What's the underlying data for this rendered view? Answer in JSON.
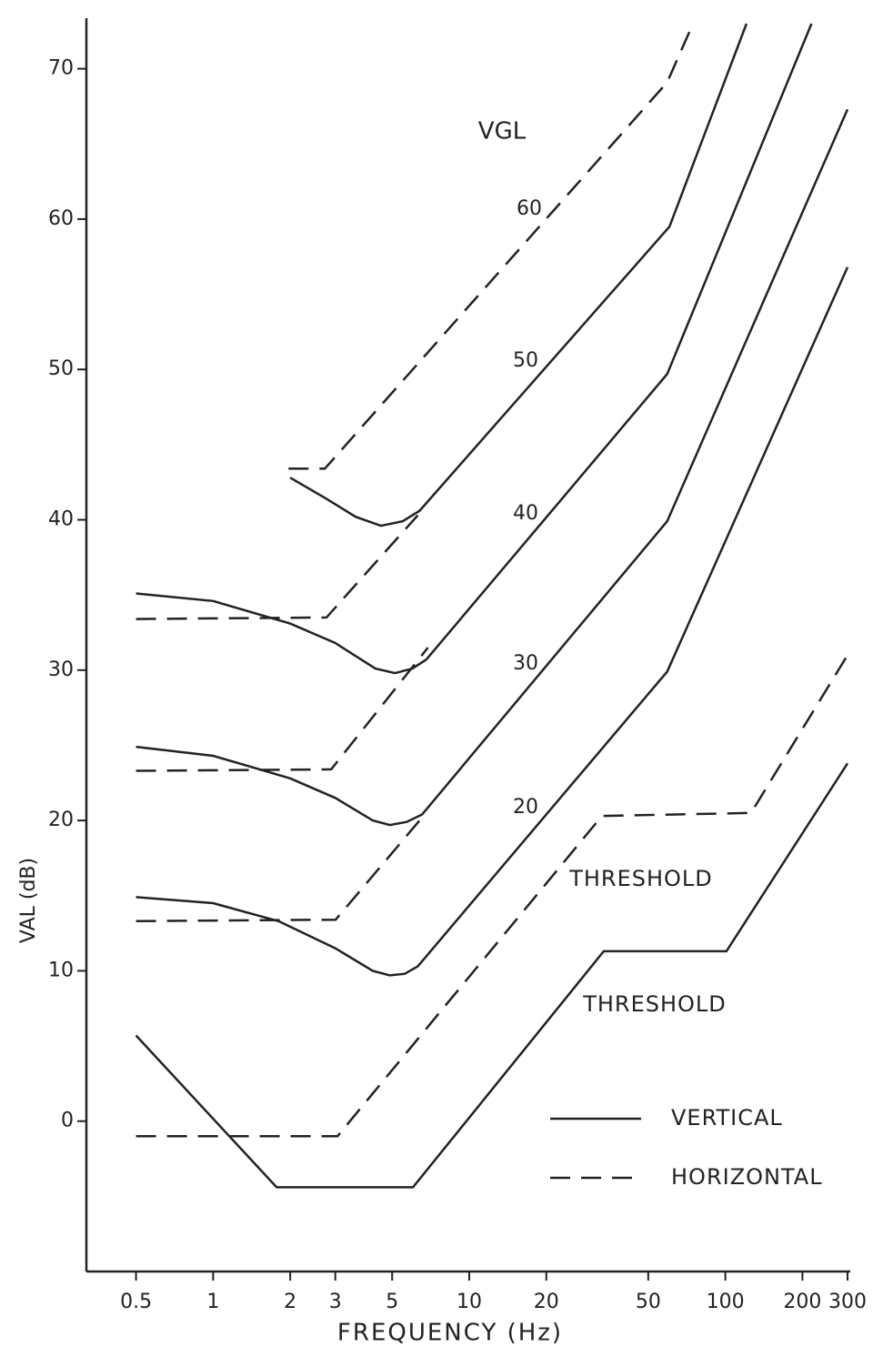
{
  "chart_data": {
    "type": "line",
    "xlabel": "FREQUENCY (Hz)",
    "ylabel": "VAL (dB)",
    "xscale": "log",
    "xlim": [
      0.32,
      300
    ],
    "ylim": [
      -10,
      73
    ],
    "xticks": [
      0.5,
      1,
      2,
      3,
      5,
      10,
      20,
      50,
      100,
      200,
      300
    ],
    "yticks": [
      0,
      10,
      20,
      30,
      40,
      50,
      60,
      70
    ],
    "grid": false,
    "color": "#222222",
    "group_title": "VGL",
    "group_labels": [
      60,
      50,
      40,
      30,
      20
    ],
    "annotations": [
      "THRESHOLD",
      "THRESHOLD"
    ],
    "legend_position": "lower right",
    "legend": [
      {
        "label": "VERTICAL",
        "style": "solid"
      },
      {
        "label": "HORIZONTAL",
        "style": "dashed"
      }
    ],
    "series": [
      {
        "style": "solid",
        "x": [
          0.5,
          1.77,
          6.03,
          33.5,
          101,
          300
        ],
        "values": [
          5.7,
          -4.4,
          -4.4,
          11.3,
          11.3,
          23.8
        ]
      },
      {
        "style": "dashed",
        "x": [
          0.5,
          3.06,
          33,
          126,
          300
        ],
        "values": [
          -1.0,
          -1.0,
          20.3,
          20.5,
          31.0
        ]
      },
      {
        "style": "solid",
        "x": [
          0.5,
          1,
          1.8,
          3,
          4.2,
          4.9,
          5.6,
          6.3,
          59.3,
          300
        ],
        "values": [
          14.9,
          14.5,
          13.3,
          11.5,
          10.0,
          9.7,
          9.8,
          10.3,
          29.9,
          56.8
        ]
      },
      {
        "style": "dashed",
        "x": [
          0.5,
          3.01,
          6.55
        ],
        "values": [
          13.3,
          13.4,
          20.2
        ]
      },
      {
        "style": "solid",
        "x": [
          0.5,
          1,
          2,
          3,
          4.2,
          4.9,
          5.7,
          6.55,
          59.3,
          300
        ],
        "values": [
          24.9,
          24.3,
          22.8,
          21.5,
          20.0,
          19.7,
          19.9,
          20.4,
          39.9,
          67.3
        ]
      },
      {
        "style": "dashed",
        "x": [
          0.5,
          2.89,
          6.9
        ],
        "values": [
          23.3,
          23.4,
          31.5
        ]
      },
      {
        "style": "solid",
        "x": [
          0.5,
          1,
          2,
          3,
          4.3,
          5.13,
          6,
          6.8,
          59.3,
          217
        ],
        "values": [
          35.1,
          34.6,
          33.1,
          31.8,
          30.1,
          29.8,
          30.1,
          30.7,
          49.7,
          73
        ]
      },
      {
        "style": "dashed",
        "x": [
          0.5,
          2.77,
          6.3
        ],
        "values": [
          33.4,
          33.5,
          40.3
        ]
      },
      {
        "style": "solid",
        "x": [
          2.0,
          2.77,
          3.6,
          4.52,
          5.5,
          6.4,
          60.5,
          121
        ],
        "values": [
          42.8,
          41.4,
          40.2,
          39.6,
          39.9,
          40.6,
          59.5,
          73
        ]
      },
      {
        "style": "dashed",
        "x": [
          1.97,
          2.73,
          59.3,
          74.8
        ],
        "values": [
          43.4,
          43.4,
          69.1,
          73
        ]
      }
    ]
  }
}
